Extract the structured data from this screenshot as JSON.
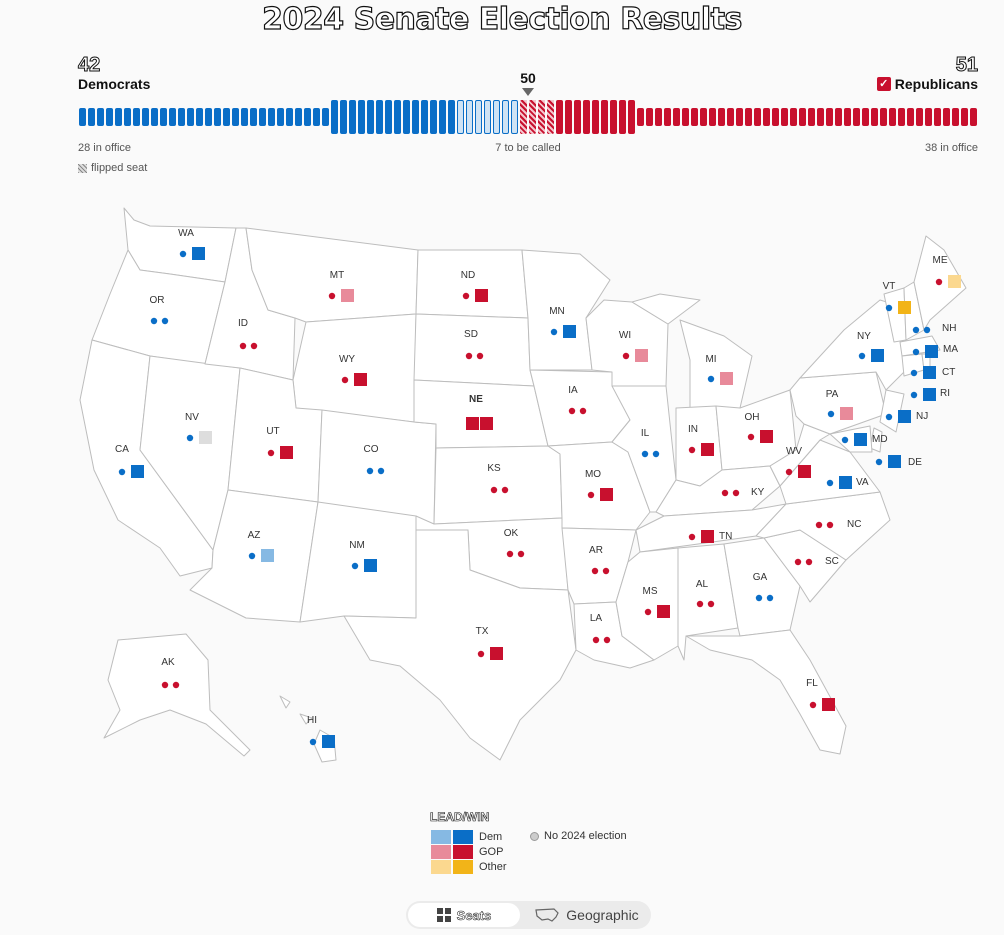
{
  "title": "2024 Senate Election Results",
  "summary": {
    "dem_count": "42",
    "dem_label": "Democrats",
    "rep_count": "51",
    "rep_label": "Republicans",
    "rep_check": "✓",
    "majority": "50",
    "dem_office_note": "28 in office",
    "to_call_note": "7 to be called",
    "rep_office_note": "38 in office",
    "flipped_note": "flipped seat"
  },
  "seat_bar": {
    "dem_in_office": 28,
    "dem_won": 14,
    "dem_lead": 7,
    "rep_flipped": 4,
    "rep_won": 9,
    "rep_in_office": 38
  },
  "colors": {
    "dem_win": "#0a6ec7",
    "dem_lead": "#86b9e3",
    "rep_win": "#c8102e",
    "rep_lead": "#e88a9a",
    "other_win": "#f2b418",
    "other_lead": "#fbd88f",
    "no_election": "#dddddd"
  },
  "states": [
    {
      "abbr": "WA",
      "seats": [
        "dem_win"
      ],
      "dots": [
        "dem"
      ]
    },
    {
      "abbr": "OR",
      "seats": [],
      "dots": [
        "dem",
        "dem"
      ]
    },
    {
      "abbr": "CA",
      "seats": [
        "dem_win"
      ],
      "dots": [
        "dem"
      ]
    },
    {
      "abbr": "NV",
      "seats": [
        "no_election"
      ],
      "dots": [
        "dem"
      ]
    },
    {
      "abbr": "ID",
      "seats": [],
      "dots": [
        "rep",
        "rep"
      ]
    },
    {
      "abbr": "MT",
      "seats": [
        "rep_lead"
      ],
      "dots": [
        "rep"
      ]
    },
    {
      "abbr": "WY",
      "seats": [
        "rep_win"
      ],
      "dots": [
        "rep"
      ]
    },
    {
      "abbr": "UT",
      "seats": [
        "rep_win"
      ],
      "dots": [
        "rep"
      ]
    },
    {
      "abbr": "AZ",
      "seats": [
        "dem_lead"
      ],
      "dots": [
        "dem"
      ]
    },
    {
      "abbr": "CO",
      "seats": [],
      "dots": [
        "dem",
        "dem"
      ]
    },
    {
      "abbr": "NM",
      "seats": [
        "dem_win"
      ],
      "dots": [
        "dem"
      ]
    },
    {
      "abbr": "ND",
      "seats": [
        "rep_win"
      ],
      "dots": [
        "rep"
      ]
    },
    {
      "abbr": "SD",
      "seats": [],
      "dots": [
        "rep",
        "rep"
      ]
    },
    {
      "abbr": "NE",
      "seats": [
        "rep_win",
        "rep_win"
      ],
      "dots": []
    },
    {
      "abbr": "KS",
      "seats": [],
      "dots": [
        "rep",
        "rep"
      ]
    },
    {
      "abbr": "OK",
      "seats": [],
      "dots": [
        "rep",
        "rep"
      ]
    },
    {
      "abbr": "TX",
      "seats": [
        "rep_win"
      ],
      "dots": [
        "rep"
      ]
    },
    {
      "abbr": "MN",
      "seats": [
        "dem_win"
      ],
      "dots": [
        "dem"
      ]
    },
    {
      "abbr": "IA",
      "seats": [],
      "dots": [
        "rep",
        "rep"
      ]
    },
    {
      "abbr": "MO",
      "seats": [
        "rep_win"
      ],
      "dots": [
        "rep"
      ]
    },
    {
      "abbr": "AR",
      "seats": [],
      "dots": [
        "rep",
        "rep"
      ]
    },
    {
      "abbr": "LA",
      "seats": [],
      "dots": [
        "rep",
        "rep"
      ]
    },
    {
      "abbr": "WI",
      "seats": [
        "rep_lead"
      ],
      "dots": [
        "rep"
      ]
    },
    {
      "abbr": "IL",
      "seats": [],
      "dots": [
        "dem",
        "dem"
      ]
    },
    {
      "abbr": "MI",
      "seats": [
        "rep_lead"
      ],
      "dots": [
        "dem"
      ]
    },
    {
      "abbr": "IN",
      "seats": [
        "rep_win"
      ],
      "dots": [
        "rep"
      ]
    },
    {
      "abbr": "OH",
      "seats": [
        "rep_win"
      ],
      "dots": [
        "rep"
      ]
    },
    {
      "abbr": "KY",
      "seats": [],
      "dots": [
        "rep",
        "rep"
      ]
    },
    {
      "abbr": "TN",
      "seats": [
        "rep_win"
      ],
      "dots": [
        "rep"
      ]
    },
    {
      "abbr": "MS",
      "seats": [
        "rep_win"
      ],
      "dots": [
        "rep"
      ]
    },
    {
      "abbr": "AL",
      "seats": [],
      "dots": [
        "rep",
        "rep"
      ]
    },
    {
      "abbr": "GA",
      "seats": [],
      "dots": [
        "dem",
        "dem"
      ]
    },
    {
      "abbr": "FL",
      "seats": [
        "rep_win"
      ],
      "dots": [
        "rep"
      ]
    },
    {
      "abbr": "SC",
      "seats": [],
      "dots": [
        "rep",
        "rep"
      ]
    },
    {
      "abbr": "NC",
      "seats": [],
      "dots": [
        "rep",
        "rep"
      ]
    },
    {
      "abbr": "VA",
      "seats": [
        "dem_win"
      ],
      "dots": [
        "dem"
      ]
    },
    {
      "abbr": "WV",
      "seats": [
        "rep_win"
      ],
      "dots": [
        "rep"
      ]
    },
    {
      "abbr": "PA",
      "seats": [
        "rep_lead"
      ],
      "dots": [
        "dem"
      ]
    },
    {
      "abbr": "NY",
      "seats": [
        "dem_win"
      ],
      "dots": [
        "dem"
      ]
    },
    {
      "abbr": "VT",
      "seats": [
        "other_win"
      ],
      "dots": [
        "dem"
      ]
    },
    {
      "abbr": "ME",
      "seats": [
        "other_lead"
      ],
      "dots": [
        "rep"
      ]
    },
    {
      "abbr": "NH",
      "seats": [],
      "dots": [
        "dem",
        "dem"
      ]
    },
    {
      "abbr": "MA",
      "seats": [
        "dem_win"
      ],
      "dots": [
        "dem"
      ]
    },
    {
      "abbr": "CT",
      "seats": [
        "dem_win"
      ],
      "dots": [
        "dem"
      ]
    },
    {
      "abbr": "RI",
      "seats": [
        "dem_win"
      ],
      "dots": [
        "dem"
      ]
    },
    {
      "abbr": "NJ",
      "seats": [
        "dem_win"
      ],
      "dots": [
        "dem"
      ]
    },
    {
      "abbr": "DE",
      "seats": [
        "dem_win"
      ],
      "dots": [
        "dem"
      ]
    },
    {
      "abbr": "MD",
      "seats": [
        "dem_win"
      ],
      "dots": [
        "dem"
      ]
    },
    {
      "abbr": "AK",
      "seats": [],
      "dots": [
        "rep",
        "rep"
      ]
    },
    {
      "abbr": "HI",
      "seats": [
        "dem_win"
      ],
      "dots": [
        "dem"
      ]
    }
  ],
  "legend": {
    "title": "LEAD/WIN",
    "dem": "Dem",
    "gop": "GOP",
    "other": "Other",
    "no_election": "No 2024 election"
  },
  "toggle": {
    "seats": "Seats",
    "geographic": "Geographic",
    "active": "seats"
  }
}
